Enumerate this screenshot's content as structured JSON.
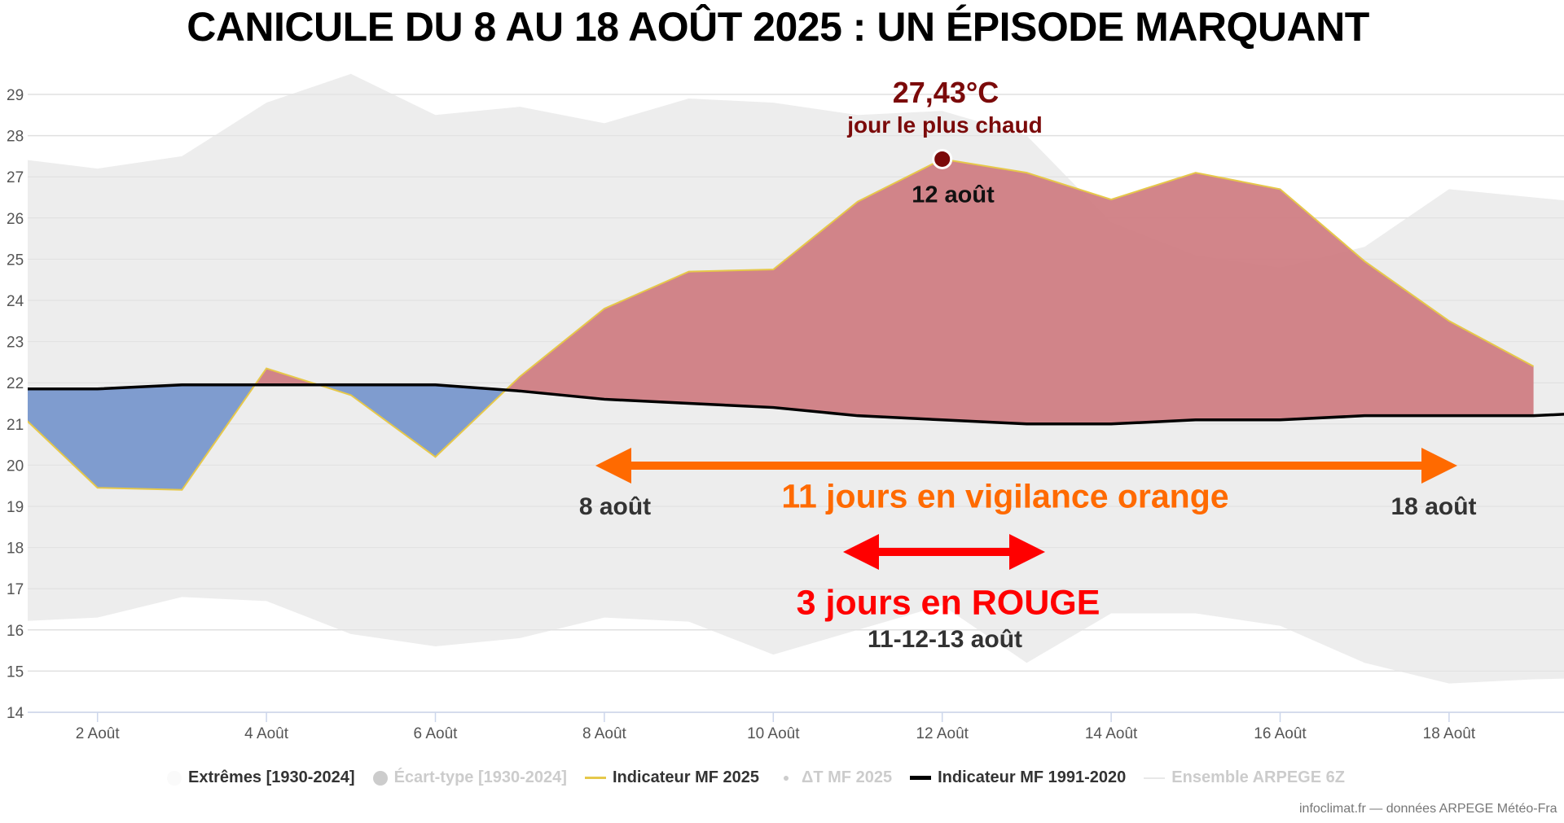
{
  "title": "CANICULE DU 8 AU 18 AOÛT 2025 : UN ÉPISODE MARQUANT",
  "chart_data": {
    "type": "area",
    "title": "CANICULE DU 8 AU 18 AOÛT 2025 : UN ÉPISODE MARQUANT",
    "xlabel": "",
    "ylabel": "",
    "ylim": [
      14,
      29
    ],
    "xlim_days": [
      1.17,
      19.2
    ],
    "grid": true,
    "legend_position": "bottom",
    "yticks": [
      "14",
      "15",
      "16",
      "17",
      "18",
      "19",
      "20",
      "21",
      "22",
      "23",
      "24",
      "25",
      "26",
      "27",
      "28",
      "29"
    ],
    "xticks": [
      {
        "day": 2,
        "label": "2 Août"
      },
      {
        "day": 4,
        "label": "4 Août"
      },
      {
        "day": 6,
        "label": "6 Août"
      },
      {
        "day": 8,
        "label": "8 Août"
      },
      {
        "day": 10,
        "label": "10 Août"
      },
      {
        "day": 12,
        "label": "12 Août"
      },
      {
        "day": 14,
        "label": "14 Août"
      },
      {
        "day": 16,
        "label": "16 Août"
      },
      {
        "day": 18,
        "label": "18 Août"
      }
    ],
    "series": [
      {
        "name": "Extrêmes [1930-2024] max",
        "x": [
          1,
          2,
          3,
          4,
          5,
          6,
          7,
          8,
          9,
          10,
          11,
          12,
          13,
          14,
          15,
          16,
          17,
          18,
          19,
          20
        ],
        "values": [
          27.45,
          27.2,
          27.5,
          28.8,
          29.5,
          28.5,
          28.7,
          28.3,
          28.9,
          28.8,
          28.5,
          28.6,
          28.0,
          25.9,
          25.1,
          24.8,
          25.3,
          26.7,
          26.5,
          26.3
        ]
      },
      {
        "name": "Extrêmes [1930-2024] min",
        "x": [
          1,
          2,
          3,
          4,
          5,
          6,
          7,
          8,
          9,
          10,
          11,
          12,
          13,
          14,
          15,
          16,
          17,
          18,
          19,
          20
        ],
        "values": [
          16.2,
          16.3,
          16.8,
          16.7,
          15.9,
          15.6,
          15.8,
          16.3,
          16.2,
          15.4,
          16.0,
          16.6,
          15.2,
          16.4,
          16.4,
          16.1,
          15.2,
          14.7,
          14.8,
          14.85
        ]
      },
      {
        "name": "Indicateur MF 2025",
        "x": [
          1,
          2,
          3,
          4,
          5,
          6,
          7,
          8,
          9,
          10,
          11,
          12,
          13,
          14,
          15,
          16,
          17,
          18,
          19
        ],
        "values": [
          21.4,
          19.45,
          19.4,
          22.35,
          21.7,
          20.2,
          22.15,
          23.8,
          24.7,
          24.75,
          26.4,
          27.43,
          27.1,
          26.45,
          27.1,
          26.7,
          24.95,
          23.5,
          22.4
        ]
      },
      {
        "name": "Indicateur MF 1991-2020",
        "x": [
          1,
          2,
          3,
          4,
          5,
          6,
          7,
          8,
          9,
          10,
          11,
          12,
          13,
          14,
          15,
          16,
          17,
          18,
          19,
          20
        ],
        "values": [
          21.85,
          21.85,
          21.95,
          21.95,
          21.95,
          21.95,
          21.8,
          21.6,
          21.5,
          21.4,
          21.2,
          21.1,
          21.0,
          21.0,
          21.1,
          21.1,
          21.2,
          21.2,
          21.2,
          21.3
        ]
      }
    ],
    "annotations": {
      "max_value": "27,43°C",
      "max_label": "jour le plus chaud",
      "max_date": "12 août",
      "max_day": 12,
      "orange_text": "11 jours en vigilance orange",
      "orange_start": "8 août",
      "orange_end": "18 août",
      "red_text": "3 jours en ROUGE",
      "red_dates": "11-12-13 août"
    }
  },
  "legend": [
    {
      "label": "Extrêmes [1930-2024]",
      "active": true,
      "symbol": "circle-white"
    },
    {
      "label": "Écart-type [1930-2024]",
      "active": false,
      "symbol": "circle-gray"
    },
    {
      "label": "Indicateur MF 2025",
      "active": true,
      "symbol": "line-yellow"
    },
    {
      "label": "ΔT MF 2025",
      "active": false,
      "symbol": "dot"
    },
    {
      "label": "Indicateur MF 1991-2020",
      "active": true,
      "symbol": "line-black"
    },
    {
      "label": "Ensemble ARPEGE 6Z",
      "active": false,
      "symbol": "line-lightgray"
    }
  ],
  "credit": "infoclimat.fr — données ARPEGE Météo-Fra",
  "colors": {
    "extremes": "#ebebeb",
    "above": "#d07e84",
    "below": "#7f9ccf",
    "mf2025": "#e6c84a",
    "normal": "#000000",
    "max_dot": "#7b0a0a",
    "orange": "#ff6a00",
    "red": "#ff0000"
  }
}
